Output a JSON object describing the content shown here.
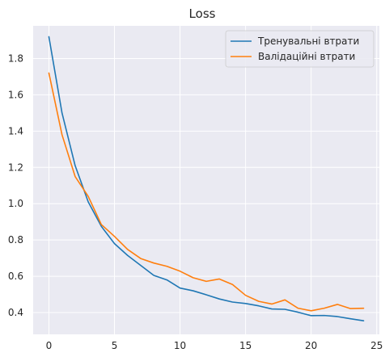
{
  "chart_data": {
    "type": "line",
    "title": "Loss",
    "xlabel": "",
    "ylabel": "",
    "xlim": [
      -1.2,
      25.2
    ],
    "ylim": [
      0.28,
      1.98
    ],
    "xticks": [
      0,
      5,
      10,
      15,
      20,
      25
    ],
    "yticks": [
      0.4,
      0.6,
      0.8,
      1.0,
      1.2,
      1.4,
      1.6,
      1.8
    ],
    "ytick_labels": [
      "0.4",
      "0.6",
      "0.8",
      "1.0",
      "1.2",
      "1.4",
      "1.6",
      "1.8"
    ],
    "grid": true,
    "legend_position": "top-right",
    "x": [
      0,
      1,
      2,
      3,
      4,
      5,
      6,
      7,
      8,
      9,
      10,
      11,
      12,
      13,
      14,
      15,
      16,
      17,
      18,
      19,
      20,
      21,
      22,
      23,
      24
    ],
    "series": [
      {
        "name": "Тренувальні втрати",
        "color": "#1f77b4",
        "values": [
          1.92,
          1.5,
          1.21,
          1.01,
          0.875,
          0.78,
          0.715,
          0.66,
          0.605,
          0.58,
          0.535,
          0.52,
          0.498,
          0.475,
          0.458,
          0.45,
          0.437,
          0.42,
          0.418,
          0.402,
          0.383,
          0.384,
          0.378,
          0.366,
          0.355
        ]
      },
      {
        "name": "Валідаційні втрати",
        "color": "#ff7f0e",
        "values": [
          1.72,
          1.38,
          1.15,
          1.04,
          0.885,
          0.82,
          0.748,
          0.698,
          0.673,
          0.655,
          0.628,
          0.592,
          0.572,
          0.585,
          0.555,
          0.495,
          0.462,
          0.447,
          0.47,
          0.424,
          0.41,
          0.424,
          0.445,
          0.422,
          0.424
        ]
      }
    ]
  }
}
